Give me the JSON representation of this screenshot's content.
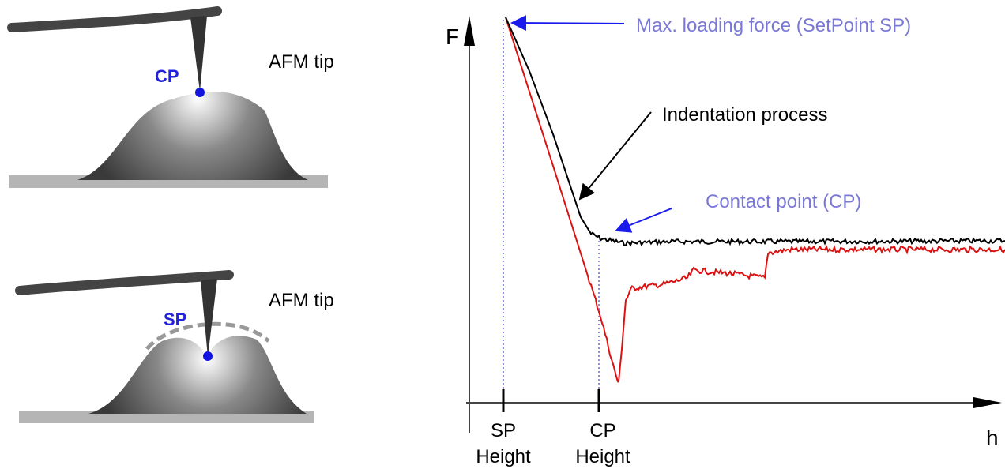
{
  "panels": [
    {
      "tip_label": "AFM tip",
      "point_label": "CP"
    },
    {
      "tip_label": "AFM tip",
      "point_label": "SP"
    }
  ],
  "plot": {
    "y_axis_label": "F",
    "x_axis_label": "h",
    "annotations": [
      "Max. loading force (SetPoint SP)",
      "Indentation process",
      "Contact point (CP)"
    ],
    "x_markers": [
      {
        "lines": [
          "SP",
          "Height"
        ]
      },
      {
        "lines": [
          "CP",
          "Height"
        ]
      }
    ]
  }
}
